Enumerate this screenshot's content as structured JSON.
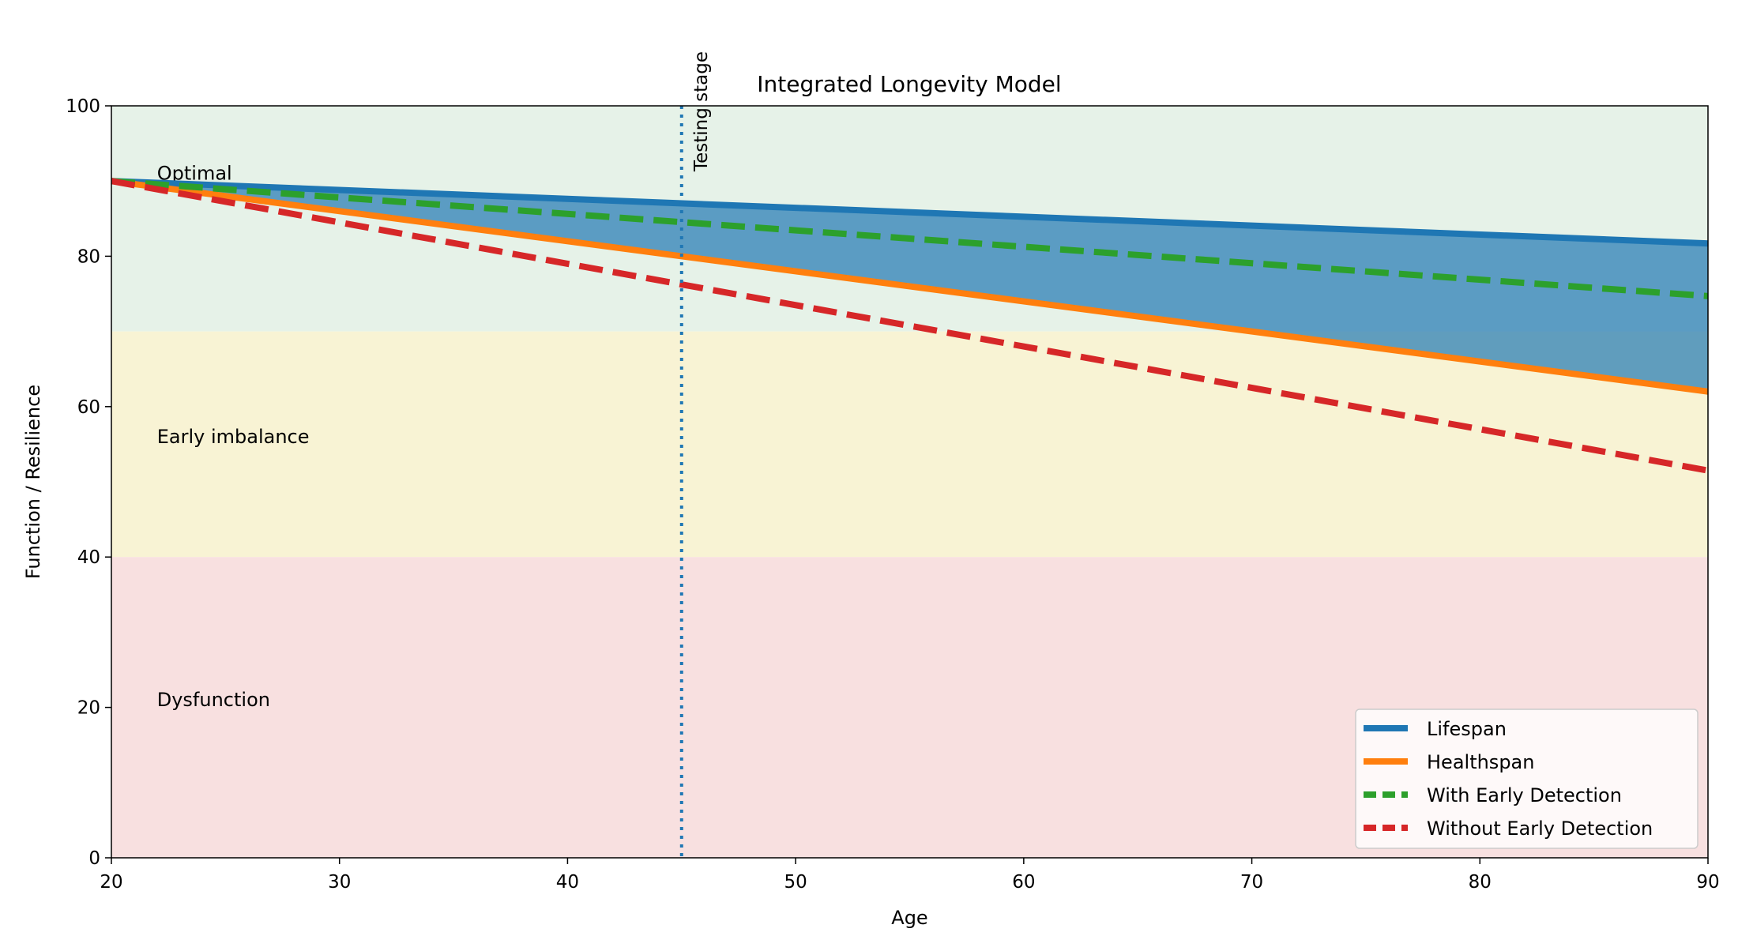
{
  "chart_data": {
    "type": "line",
    "title": "Integrated Longevity Model",
    "xlabel": "Age",
    "ylabel": "Function / Resilience",
    "xlim": [
      20,
      90
    ],
    "ylim": [
      0,
      100
    ],
    "xticks": [
      20,
      30,
      40,
      50,
      60,
      70,
      80,
      90
    ],
    "yticks": [
      0,
      20,
      40,
      60,
      80,
      100
    ],
    "grid": false,
    "legend_position": "lower-right",
    "zones": [
      {
        "label": "Optimal",
        "range": [
          70,
          100
        ],
        "color": "#e6f2e8"
      },
      {
        "label": "Early imbalance",
        "range": [
          40,
          70
        ],
        "color": "#f8f3d4"
      },
      {
        "label": "Dysfunction",
        "range": [
          0,
          40
        ],
        "color": "#f8e0e0"
      }
    ],
    "vline": {
      "x": 45,
      "label": "Testing stage",
      "color": "#1f77b4"
    },
    "fill_between": {
      "upper": "Lifespan",
      "lower": "Healthspan",
      "color": "#1f77b4"
    },
    "x": [
      20,
      90
    ],
    "series": [
      {
        "name": "Lifespan",
        "values": [
          90,
          81.7
        ],
        "color": "#1f77b4",
        "style": "solid"
      },
      {
        "name": "Healthspan",
        "values": [
          90,
          62
        ],
        "color": "#ff7f0e",
        "style": "solid"
      },
      {
        "name": "With Early Detection",
        "values": [
          90,
          74.7
        ],
        "color": "#2ca02c",
        "style": "dashed"
      },
      {
        "name": "Without Early Detection",
        "values": [
          90,
          51.5
        ],
        "color": "#d62728",
        "style": "dashed"
      }
    ]
  }
}
